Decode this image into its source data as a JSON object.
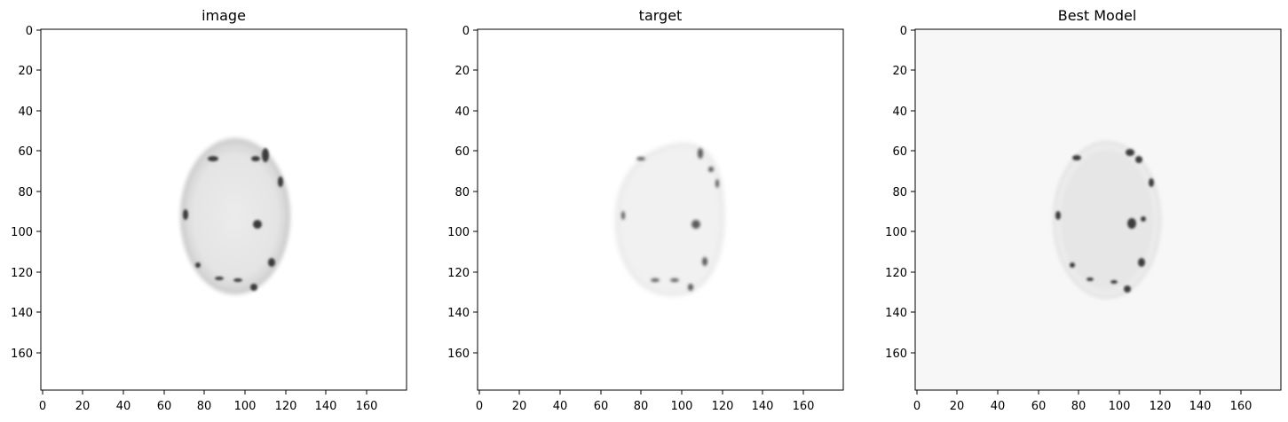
{
  "figure": {
    "panels": [
      {
        "title": "image",
        "background": "#ffffff",
        "xticks": [
          "0",
          "20",
          "40",
          "60",
          "80",
          "100",
          "120",
          "140",
          "160"
        ],
        "yticks": [
          "0",
          "20",
          "40",
          "60",
          "80",
          "100",
          "120",
          "140",
          "160"
        ]
      },
      {
        "title": "target",
        "background": "#ffffff",
        "xticks": [
          "0",
          "20",
          "40",
          "60",
          "80",
          "100",
          "120",
          "140",
          "160"
        ],
        "yticks": [
          "0",
          "20",
          "40",
          "60",
          "80",
          "100",
          "120",
          "140",
          "160"
        ]
      },
      {
        "title": "Best Model",
        "background": "#f7f7f7",
        "xticks": [
          "0",
          "20",
          "40",
          "60",
          "80",
          "100",
          "120",
          "140",
          "160"
        ],
        "yticks": [
          "0",
          "20",
          "40",
          "60",
          "80",
          "100",
          "120",
          "140",
          "160"
        ]
      }
    ],
    "colormap": "gray_r",
    "pixel_extent": [
      0,
      180
    ]
  }
}
